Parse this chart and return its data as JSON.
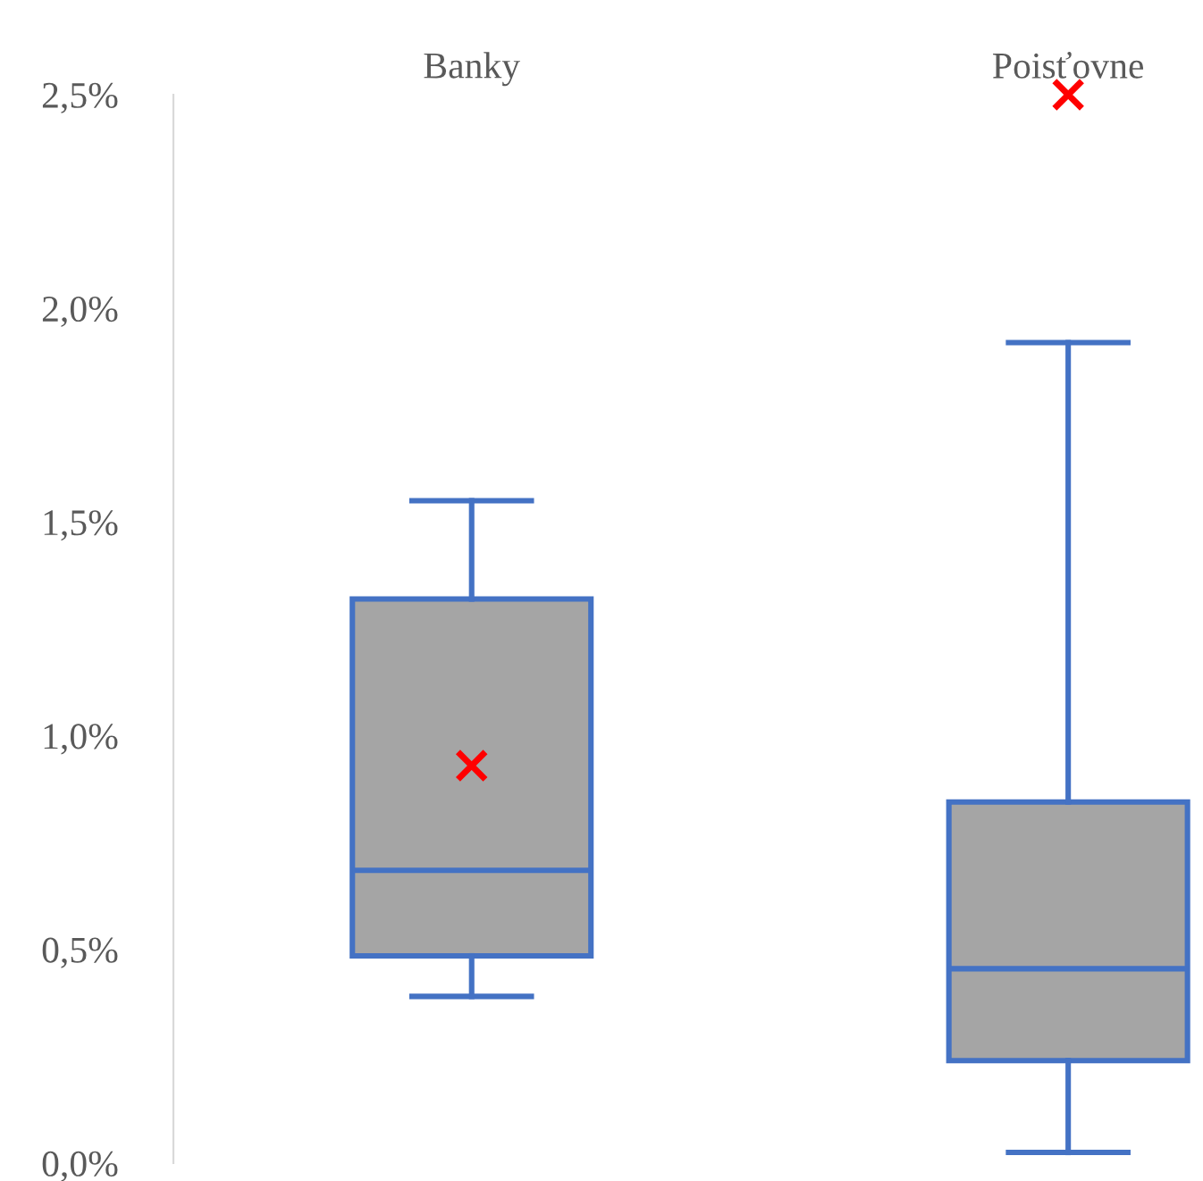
{
  "chart_data": {
    "type": "box",
    "categories": [
      "Banky",
      "Poisťovne"
    ],
    "boxes": [
      {
        "low": 0.39,
        "q1": 0.485,
        "median": 0.685,
        "q3": 1.32,
        "high": 1.55,
        "mean": 0.93
      },
      {
        "low": 0.025,
        "q1": 0.24,
        "median": 0.455,
        "q3": 0.845,
        "high": 1.92,
        "mean": 2.5
      }
    ],
    "color": "#a5a5a5",
    "ylim": [
      0,
      2.5
    ],
    "yticks": [
      {
        "value": 0,
        "label": "0,0%"
      },
      {
        "value": 0.5,
        "label": "0,5%"
      },
      {
        "value": 1.0,
        "label": "1,0%"
      },
      {
        "value": 1.5,
        "label": "1,5%"
      },
      {
        "value": 2.0,
        "label": "2,0%"
      },
      {
        "value": 2.5,
        "label": "2,5%"
      }
    ],
    "grid": false
  }
}
